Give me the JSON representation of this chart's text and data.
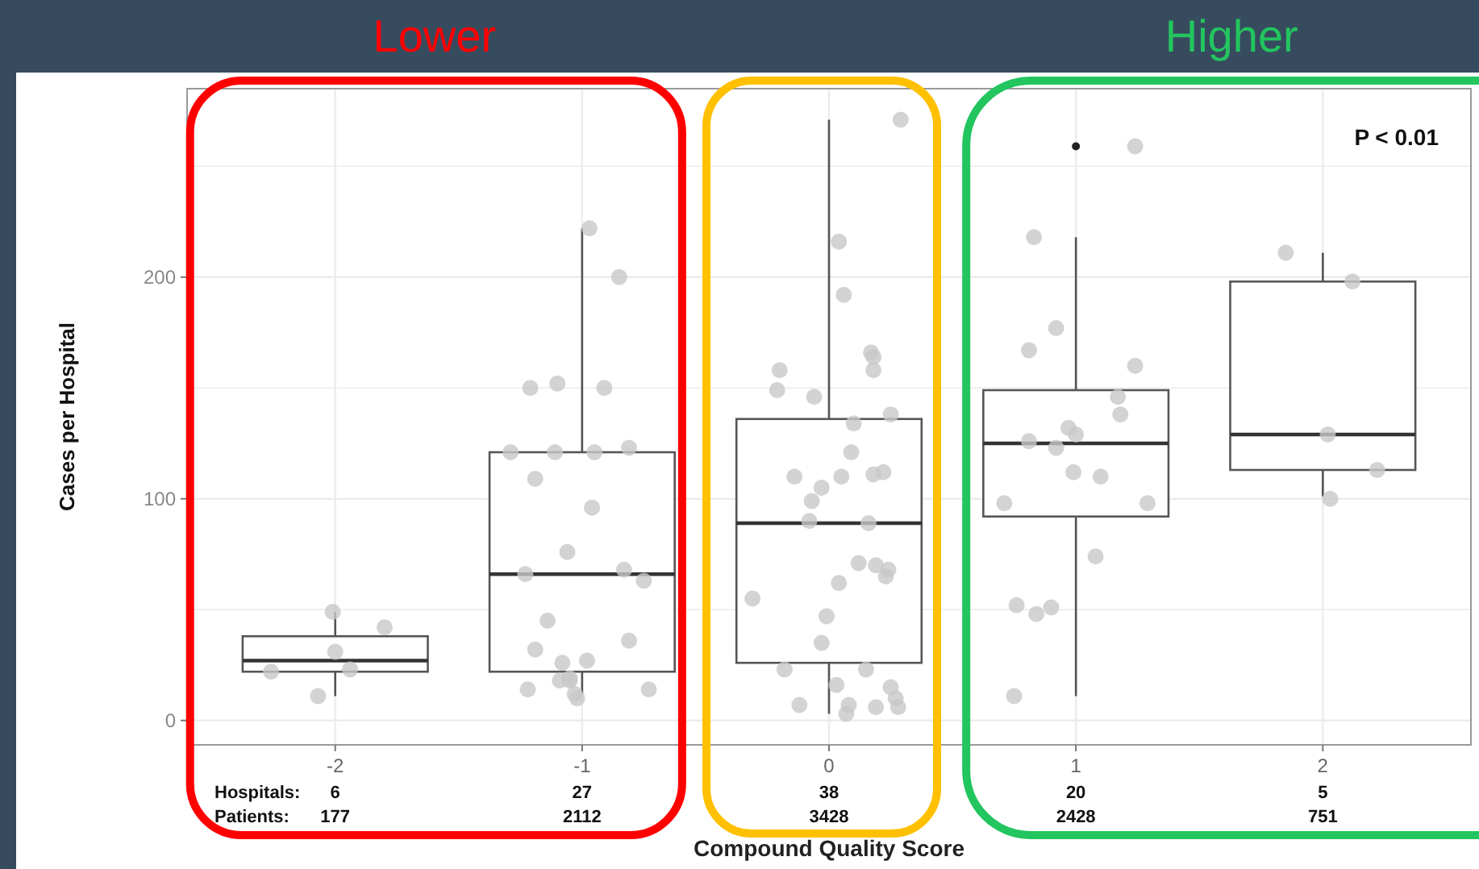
{
  "chart_data": {
    "type": "box",
    "xlabel": "Compound Quality Score",
    "ylabel": "Cases per Hospital",
    "x": [
      -2,
      -1,
      0,
      1,
      2
    ],
    "xlim": [
      -2.6,
      2.6
    ],
    "xticks": [
      -2,
      -1,
      0,
      1,
      2
    ],
    "ylim": [
      -11,
      285
    ],
    "yticks": [
      0,
      {
        "value": 50,
        "label": null
      },
      100,
      {
        "value": 150,
        "label": null
      },
      200,
      {
        "value": 250,
        "label": null
      }
    ],
    "grid": true,
    "boxes": [
      {
        "low": 11,
        "q1": 22,
        "median": 27,
        "q3": 38,
        "high": 49
      },
      {
        "low": 12,
        "q1": 22,
        "median": 66,
        "q3": 121,
        "high": 222
      },
      {
        "low": 3,
        "q1": 26,
        "median": 89,
        "q3": 136,
        "high": 271
      },
      {
        "low": 11,
        "q1": 92,
        "median": 125,
        "q3": 149,
        "high": 218,
        "outliers": [
          259
        ]
      },
      {
        "low": 101,
        "q1": 113,
        "median": 129,
        "q3": 198,
        "high": 211
      }
    ],
    "series": [
      {
        "type": "scatter",
        "color": "#c8c8c8",
        "x": [
          -2.01,
          -1.8,
          -2.0,
          -2.26,
          -1.94,
          -2.07,
          -0.97,
          -0.85,
          -1.21,
          -1.1,
          -0.91,
          -0.81,
          -1.29,
          -1.11,
          -0.95,
          -1.19,
          -0.96,
          -1.06,
          -1.23,
          -0.83,
          -0.75,
          -1.14,
          -0.81,
          -1.19,
          -1.08,
          -0.98,
          -1.09,
          -1.05,
          -1.22,
          -0.73,
          -1.03,
          -1.02,
          -1.05,
          0.29,
          0.04,
          0.06,
          0.17,
          0.18,
          -0.2,
          0.18,
          -0.21,
          -0.06,
          0.1,
          0.25,
          0.09,
          -0.14,
          0.05,
          0.18,
          0.22,
          -0.03,
          -0.07,
          -0.08,
          0.16,
          0.12,
          0.19,
          0.24,
          0.23,
          0.04,
          -0.31,
          -0.01,
          -0.03,
          -0.18,
          0.15,
          0.03,
          0.25,
          0.27,
          0.08,
          -0.12,
          0.28,
          0.19,
          0.07,
          1.24,
          0.83,
          0.92,
          0.81,
          1.24,
          1.17,
          1.18,
          0.97,
          1.0,
          0.81,
          0.92,
          0.99,
          1.1,
          0.71,
          1.29,
          1.08,
          0.76,
          0.84,
          0.9,
          0.75,
          1.85,
          2.12,
          2.02,
          2.22,
          2.03
        ],
        "values": [
          49,
          42,
          31,
          22,
          23,
          11,
          222,
          200,
          150,
          152,
          150,
          123,
          121,
          121,
          121,
          109,
          96,
          76,
          66,
          68,
          63,
          45,
          36,
          32,
          26,
          27,
          18,
          19,
          14,
          14,
          12,
          10,
          18,
          271,
          216,
          192,
          166,
          164,
          158,
          158,
          149,
          146,
          134,
          138,
          121,
          110,
          110,
          111,
          112,
          105,
          99,
          90,
          89,
          71,
          70,
          68,
          65,
          62,
          55,
          47,
          35,
          23,
          23,
          16,
          15,
          10,
          7,
          7,
          6,
          6,
          3,
          259,
          218,
          177,
          167,
          160,
          146,
          138,
          132,
          129,
          126,
          123,
          112,
          110,
          98,
          98,
          74,
          52,
          48,
          51,
          11,
          211,
          198,
          129,
          113,
          100
        ]
      }
    ],
    "annotations": [
      "Lower",
      "Higher",
      "P < 0.01",
      "Hospitals:",
      "Patients:",
      "6",
      "177",
      "27",
      "2112",
      "38",
      "3428",
      "20",
      "2428",
      "5",
      "751"
    ]
  }
}
